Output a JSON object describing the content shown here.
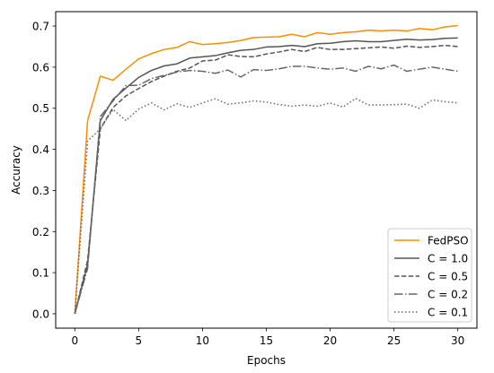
{
  "chart_data": {
    "type": "line",
    "title": "",
    "xlabel": "Epochs",
    "ylabel": "Accuracy",
    "xlim": [
      -1.5,
      31.5
    ],
    "ylim": [
      -0.035,
      0.735
    ],
    "xticks": [
      0,
      5,
      10,
      15,
      20,
      25,
      30
    ],
    "yticks": [
      0.0,
      0.1,
      0.2,
      0.3,
      0.4,
      0.5,
      0.6,
      0.7
    ],
    "grid": false,
    "legend_position": "lower-right",
    "x": [
      0,
      1,
      2,
      3,
      4,
      5,
      6,
      7,
      8,
      9,
      10,
      11,
      12,
      13,
      14,
      15,
      16,
      17,
      18,
      19,
      20,
      21,
      22,
      23,
      24,
      25,
      26,
      27,
      28,
      29,
      30
    ],
    "series": [
      {
        "name": "FedPSO",
        "color": "#ff8c00",
        "dash": "solid",
        "values": [
          0.0,
          0.47,
          0.578,
          0.568,
          0.595,
          0.62,
          0.633,
          0.643,
          0.648,
          0.662,
          0.655,
          0.657,
          0.66,
          0.665,
          0.672,
          0.673,
          0.674,
          0.68,
          0.674,
          0.684,
          0.68,
          0.684,
          0.686,
          0.69,
          0.688,
          0.69,
          0.688,
          0.694,
          0.691,
          0.698,
          0.701
        ]
      },
      {
        "name": "C = 1.0",
        "color": "#555555",
        "dash": "solid",
        "values": [
          0.0,
          0.12,
          0.47,
          0.522,
          0.549,
          0.575,
          0.592,
          0.603,
          0.608,
          0.622,
          0.625,
          0.628,
          0.635,
          0.641,
          0.643,
          0.649,
          0.65,
          0.653,
          0.65,
          0.657,
          0.658,
          0.662,
          0.664,
          0.662,
          0.662,
          0.665,
          0.668,
          0.666,
          0.667,
          0.67,
          0.671
        ]
      },
      {
        "name": "C = 0.5",
        "color": "#555555",
        "dash": "dashed",
        "values": [
          0.0,
          0.13,
          0.45,
          0.502,
          0.53,
          0.548,
          0.565,
          0.578,
          0.59,
          0.598,
          0.615,
          0.617,
          0.63,
          0.626,
          0.625,
          0.632,
          0.637,
          0.643,
          0.638,
          0.648,
          0.643,
          0.643,
          0.645,
          0.647,
          0.649,
          0.646,
          0.651,
          0.648,
          0.65,
          0.653,
          0.65
        ]
      },
      {
        "name": "C = 0.2",
        "color": "#666666",
        "dash": "dashdot",
        "values": [
          0.0,
          0.11,
          0.48,
          0.518,
          0.555,
          0.556,
          0.572,
          0.58,
          0.588,
          0.592,
          0.59,
          0.585,
          0.593,
          0.576,
          0.594,
          0.592,
          0.596,
          0.602,
          0.602,
          0.598,
          0.595,
          0.598,
          0.59,
          0.602,
          0.596,
          0.605,
          0.59,
          0.595,
          0.6,
          0.595,
          0.59
        ]
      },
      {
        "name": "C = 0.1",
        "color": "#666666",
        "dash": "dotted",
        "values": [
          0.0,
          0.42,
          0.45,
          0.497,
          0.47,
          0.498,
          0.513,
          0.496,
          0.511,
          0.502,
          0.513,
          0.523,
          0.51,
          0.513,
          0.518,
          0.515,
          0.509,
          0.505,
          0.508,
          0.505,
          0.513,
          0.503,
          0.524,
          0.508,
          0.508,
          0.509,
          0.51,
          0.5,
          0.52,
          0.516,
          0.513
        ]
      }
    ]
  }
}
